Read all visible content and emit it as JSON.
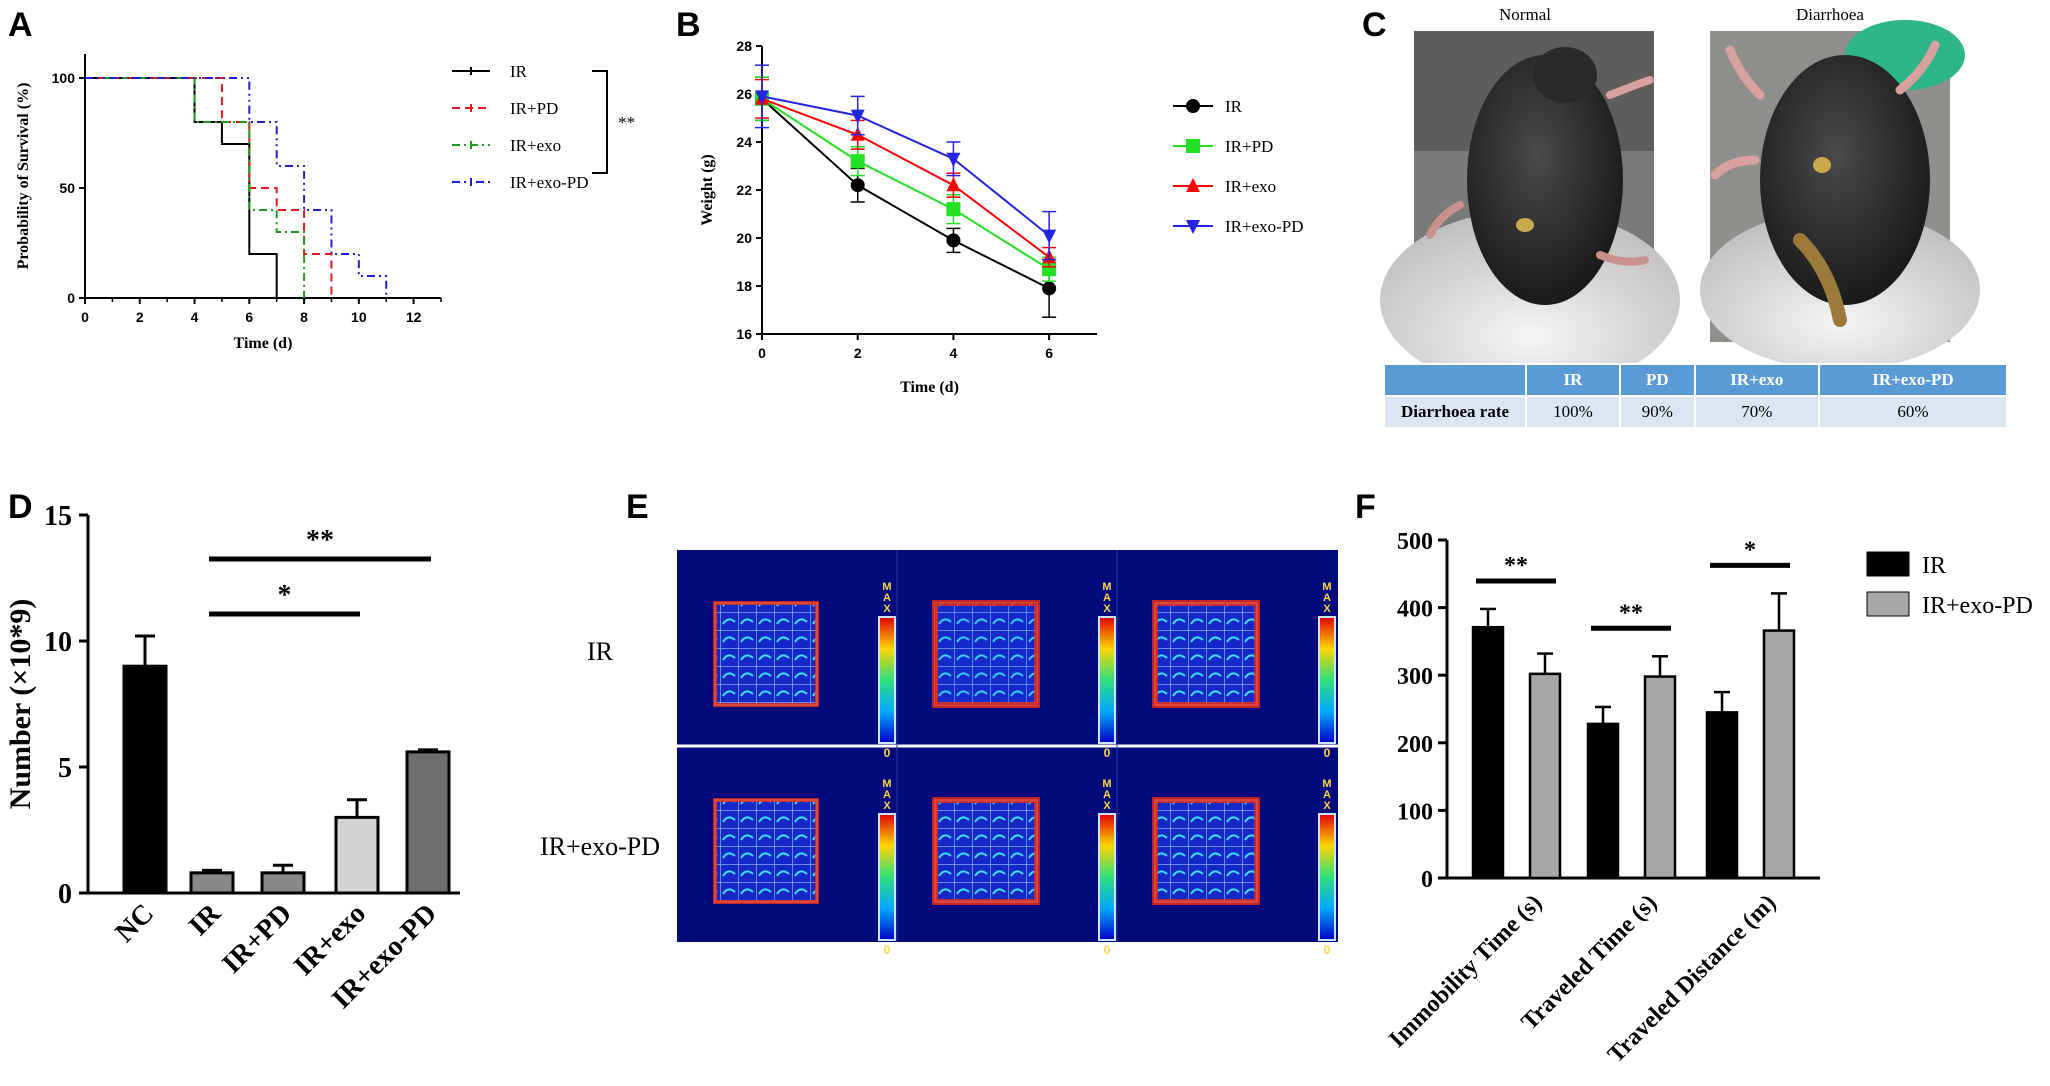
{
  "panels": {
    "A": "A",
    "B": "B",
    "C": "C",
    "D": "D",
    "E": "E",
    "F": "F"
  },
  "panel_c": {
    "normal_label": "Normal",
    "diarrhoea_label": "Diarrhoea",
    "table": {
      "header": [
        "",
        "IR",
        "PD",
        "IR+exo",
        "IR+exo-PD"
      ],
      "row_label": "Diarrhoea rate",
      "values": [
        "100%",
        "90%",
        "70%",
        "60%"
      ]
    }
  },
  "panel_e": {
    "row_labels": [
      "IR",
      "IR+exo-PD"
    ],
    "scale_top": [
      "M",
      "A",
      "X"
    ],
    "scale_bottom": "0"
  },
  "chart_data": [
    {
      "panel": "A",
      "type": "line",
      "xlabel": "Time (d)",
      "ylabel": "Probability of Survival (%)",
      "xlim": [
        0,
        13
      ],
      "ylim": [
        0,
        100
      ],
      "xticks": [
        "0",
        "2",
        "4",
        "6",
        "8",
        "10",
        "12"
      ],
      "yticks": [
        "0",
        "50",
        "100"
      ],
      "significance": "**",
      "series": [
        {
          "name": "IR",
          "color": "#000000",
          "dash": "",
          "steps": [
            [
              0,
              100
            ],
            [
              4,
              100
            ],
            [
              4,
              80
            ],
            [
              5,
              80
            ],
            [
              5,
              70
            ],
            [
              6,
              70
            ],
            [
              6,
              20
            ],
            [
              7,
              20
            ],
            [
              7,
              0
            ]
          ]
        },
        {
          "name": "IR+PD",
          "color": "#e31a1c",
          "dash": "8,5",
          "steps": [
            [
              0,
              100
            ],
            [
              5,
              100
            ],
            [
              5,
              80
            ],
            [
              6,
              80
            ],
            [
              6,
              50
            ],
            [
              7,
              50
            ],
            [
              7,
              40
            ],
            [
              8,
              40
            ],
            [
              8,
              20
            ],
            [
              9,
              20
            ],
            [
              9,
              0
            ]
          ]
        },
        {
          "name": "IR+exo",
          "color": "#1a9e1a",
          "dash": "8,4,2,4",
          "steps": [
            [
              0,
              100
            ],
            [
              4,
              100
            ],
            [
              4,
              80
            ],
            [
              6,
              80
            ],
            [
              6,
              40
            ],
            [
              7,
              40
            ],
            [
              7,
              30
            ],
            [
              8,
              30
            ],
            [
              8,
              0
            ]
          ]
        },
        {
          "name": "IR+exo-PD",
          "color": "#1f1fd1",
          "dash": "8,4,2,4,2,4",
          "steps": [
            [
              0,
              100
            ],
            [
              6,
              100
            ],
            [
              6,
              80
            ],
            [
              7,
              80
            ],
            [
              7,
              60
            ],
            [
              8,
              60
            ],
            [
              8,
              40
            ],
            [
              9,
              40
            ],
            [
              9,
              20
            ],
            [
              10,
              20
            ],
            [
              10,
              10
            ],
            [
              11,
              10
            ],
            [
              11,
              0
            ]
          ]
        }
      ]
    },
    {
      "panel": "B",
      "type": "line",
      "xlabel": "Time (d)",
      "ylabel": "Weight (g)",
      "xlim": [
        0,
        7
      ],
      "ylim": [
        16,
        28
      ],
      "xticks": [
        0,
        2,
        4,
        6
      ],
      "yticks": [
        16,
        18,
        20,
        22,
        24,
        26,
        28
      ],
      "x": [
        0,
        2,
        4,
        6
      ],
      "series": [
        {
          "name": "IR",
          "color": "#000000",
          "marker": "circle",
          "values": [
            25.8,
            22.2,
            19.9,
            17.9
          ],
          "err": [
            0.9,
            0.7,
            0.5,
            1.2
          ]
        },
        {
          "name": "IR+PD",
          "color": "#22e022",
          "marker": "square",
          "values": [
            25.8,
            23.2,
            21.2,
            18.7
          ],
          "err": [
            0.9,
            0.6,
            0.6,
            0.5
          ]
        },
        {
          "name": "IR+exo",
          "color": "#ff0000",
          "marker": "triangle-up",
          "values": [
            25.8,
            24.3,
            22.2,
            19.2
          ],
          "err": [
            0.8,
            0.6,
            0.5,
            0.4
          ]
        },
        {
          "name": "IR+exo-PD",
          "color": "#2323e0",
          "marker": "triangle-down",
          "values": [
            25.9,
            25.1,
            23.3,
            20.1
          ],
          "err": [
            1.3,
            0.8,
            0.7,
            1.0
          ]
        }
      ]
    },
    {
      "panel": "D",
      "type": "bar",
      "ylabel": "Number (×10*9)",
      "ylim": [
        0,
        15
      ],
      "yticks": [
        0,
        5,
        10,
        15
      ],
      "categories": [
        "NC",
        "IR",
        "IR+PD",
        "IR+exo",
        "IR+exo-PD"
      ],
      "values": [
        9.0,
        0.8,
        0.8,
        3.0,
        5.6
      ],
      "err": [
        1.2,
        0.1,
        0.3,
        0.7,
        0.08
      ],
      "colors": [
        "#000000",
        "#888888",
        "#888888",
        "#d4d4d4",
        "#6e6e6e"
      ],
      "brackets": [
        {
          "from": 1,
          "to": 4,
          "label": "**"
        },
        {
          "from": 1,
          "to": 3,
          "label": "*"
        }
      ]
    },
    {
      "panel": "F",
      "type": "bar",
      "ylim": [
        0,
        500
      ],
      "yticks": [
        0,
        100,
        200,
        300,
        400,
        500
      ],
      "categories": [
        "Immobility Time (s)",
        "Traveled Time (s)",
        "Traveled Distance (m)"
      ],
      "series": [
        {
          "name": "IR",
          "color": "#000000",
          "values": [
            371,
            228,
            245
          ],
          "err": [
            27,
            25,
            30
          ]
        },
        {
          "name": "IR+exo-PD",
          "color": "#a6a6a6",
          "values": [
            302,
            298,
            366
          ],
          "err": [
            30,
            30,
            55
          ]
        }
      ],
      "significance": [
        "**",
        "**",
        "*"
      ]
    }
  ]
}
